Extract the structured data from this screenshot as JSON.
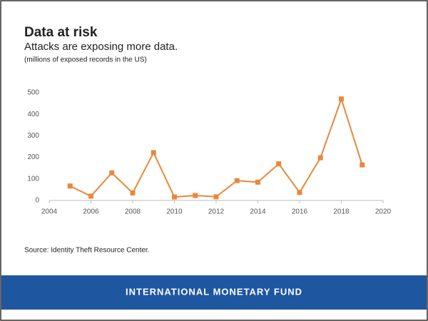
{
  "chart_data": {
    "type": "line",
    "title": "Data at risk",
    "subtitle": "Attacks are exposing more data.",
    "note": "(millions of exposed records in the US)",
    "source": "Source: Identity Theft Resource Center.",
    "footer": "INTERNATIONAL MONETARY FUND",
    "x": [
      2005,
      2006,
      2007,
      2008,
      2009,
      2010,
      2011,
      2012,
      2013,
      2014,
      2015,
      2016,
      2017,
      2018,
      2019
    ],
    "values": [
      67,
      20,
      128,
      35,
      222,
      16,
      23,
      17,
      92,
      85,
      170,
      37,
      198,
      471,
      165
    ],
    "color": "#e8883a",
    "xlim": [
      2004,
      2020
    ],
    "xticks": [
      2004,
      2006,
      2008,
      2010,
      2012,
      2014,
      2016,
      2018,
      2020
    ],
    "ylim": [
      0,
      500
    ],
    "yticks": [
      0,
      100,
      200,
      300,
      400,
      500
    ],
    "grid": false
  }
}
